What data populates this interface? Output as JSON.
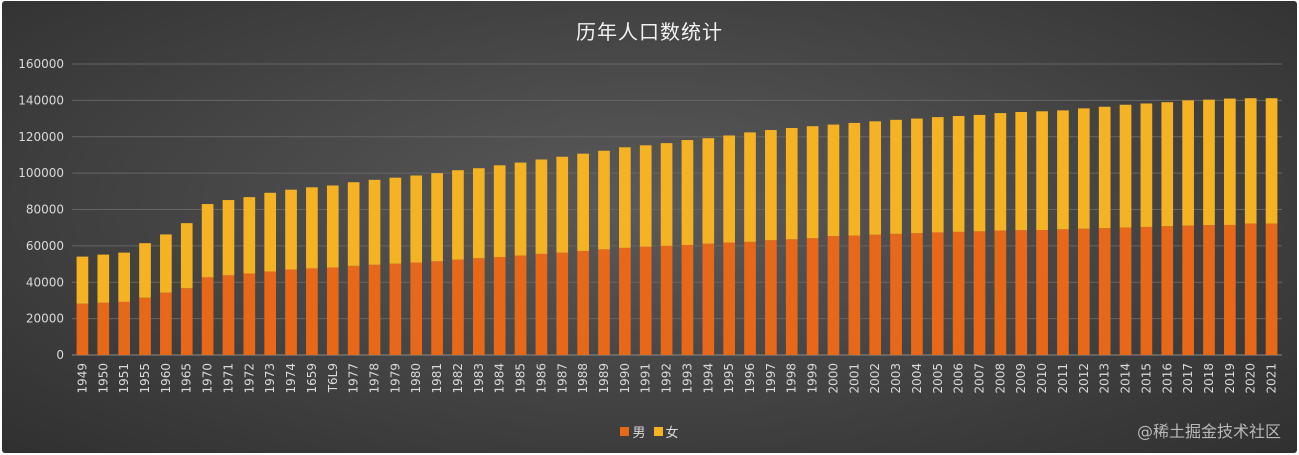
{
  "chart_data": {
    "type": "bar",
    "stacked": true,
    "title": "历年人口数统计",
    "xlabel": "",
    "ylabel": "",
    "ylim": [
      0,
      160000
    ],
    "yticks": [
      0,
      20000,
      40000,
      60000,
      80000,
      100000,
      120000,
      140000,
      160000
    ],
    "grid": true,
    "legend_position": "bottom",
    "categories": [
      "1949",
      "1950",
      "1951",
      "1955",
      "1960",
      "1965",
      "1970",
      "1971",
      "1972",
      "1973",
      "1974",
      "1659",
      "T6L9",
      "1977",
      "1978",
      "1979",
      "1980",
      "1981",
      "1982",
      "1983",
      "1984",
      "1985",
      "1986",
      "1987",
      "1988",
      "1989",
      "1990",
      "1991",
      "1992",
      "1993",
      "1994",
      "1995",
      "1996",
      "1997",
      "1998",
      "1999",
      "2000",
      "2001",
      "2002",
      "2003",
      "2004",
      "2005",
      "2006",
      "2007",
      "2008",
      "2009",
      "2010",
      "2011",
      "2012",
      "2013",
      "2014",
      "2015",
      "2016",
      "2017",
      "2018",
      "2019",
      "2020",
      "2021"
    ],
    "series": [
      {
        "name": "男",
        "color": "#e8681a",
        "values": [
          28200,
          28700,
          29200,
          31500,
          34300,
          36700,
          42700,
          43800,
          44800,
          45900,
          47000,
          47600,
          48100,
          49000,
          49600,
          50200,
          50800,
          51500,
          52400,
          53200,
          53900,
          54700,
          55600,
          56300,
          57200,
          58100,
          58900,
          59500,
          60000,
          60500,
          61200,
          61800,
          62200,
          63100,
          63600,
          64200,
          65400,
          65700,
          66100,
          66600,
          67000,
          67400,
          67700,
          68000,
          68400,
          68600,
          68700,
          69100,
          69400,
          69700,
          70100,
          70400,
          70800,
          71100,
          71400,
          71500,
          72300,
          72300
        ]
      },
      {
        "name": "女",
        "color": "#f5b223",
        "values": [
          25900,
          26500,
          27100,
          30000,
          32000,
          35800,
          40300,
          41400,
          42000,
          43300,
          43900,
          44600,
          45100,
          46000,
          46700,
          47300,
          47900,
          48500,
          49200,
          49500,
          50400,
          51100,
          51900,
          52700,
          53500,
          54200,
          55300,
          55800,
          56500,
          57700,
          58000,
          58900,
          60200,
          60600,
          61200,
          61600,
          61300,
          61900,
          62400,
          62700,
          63000,
          63400,
          63700,
          64000,
          64600,
          65000,
          65300,
          65400,
          66200,
          66800,
          67500,
          67900,
          68200,
          68900,
          69000,
          69500,
          68900,
          68900
        ]
      }
    ]
  },
  "watermark": "@稀土掘金技术社区"
}
